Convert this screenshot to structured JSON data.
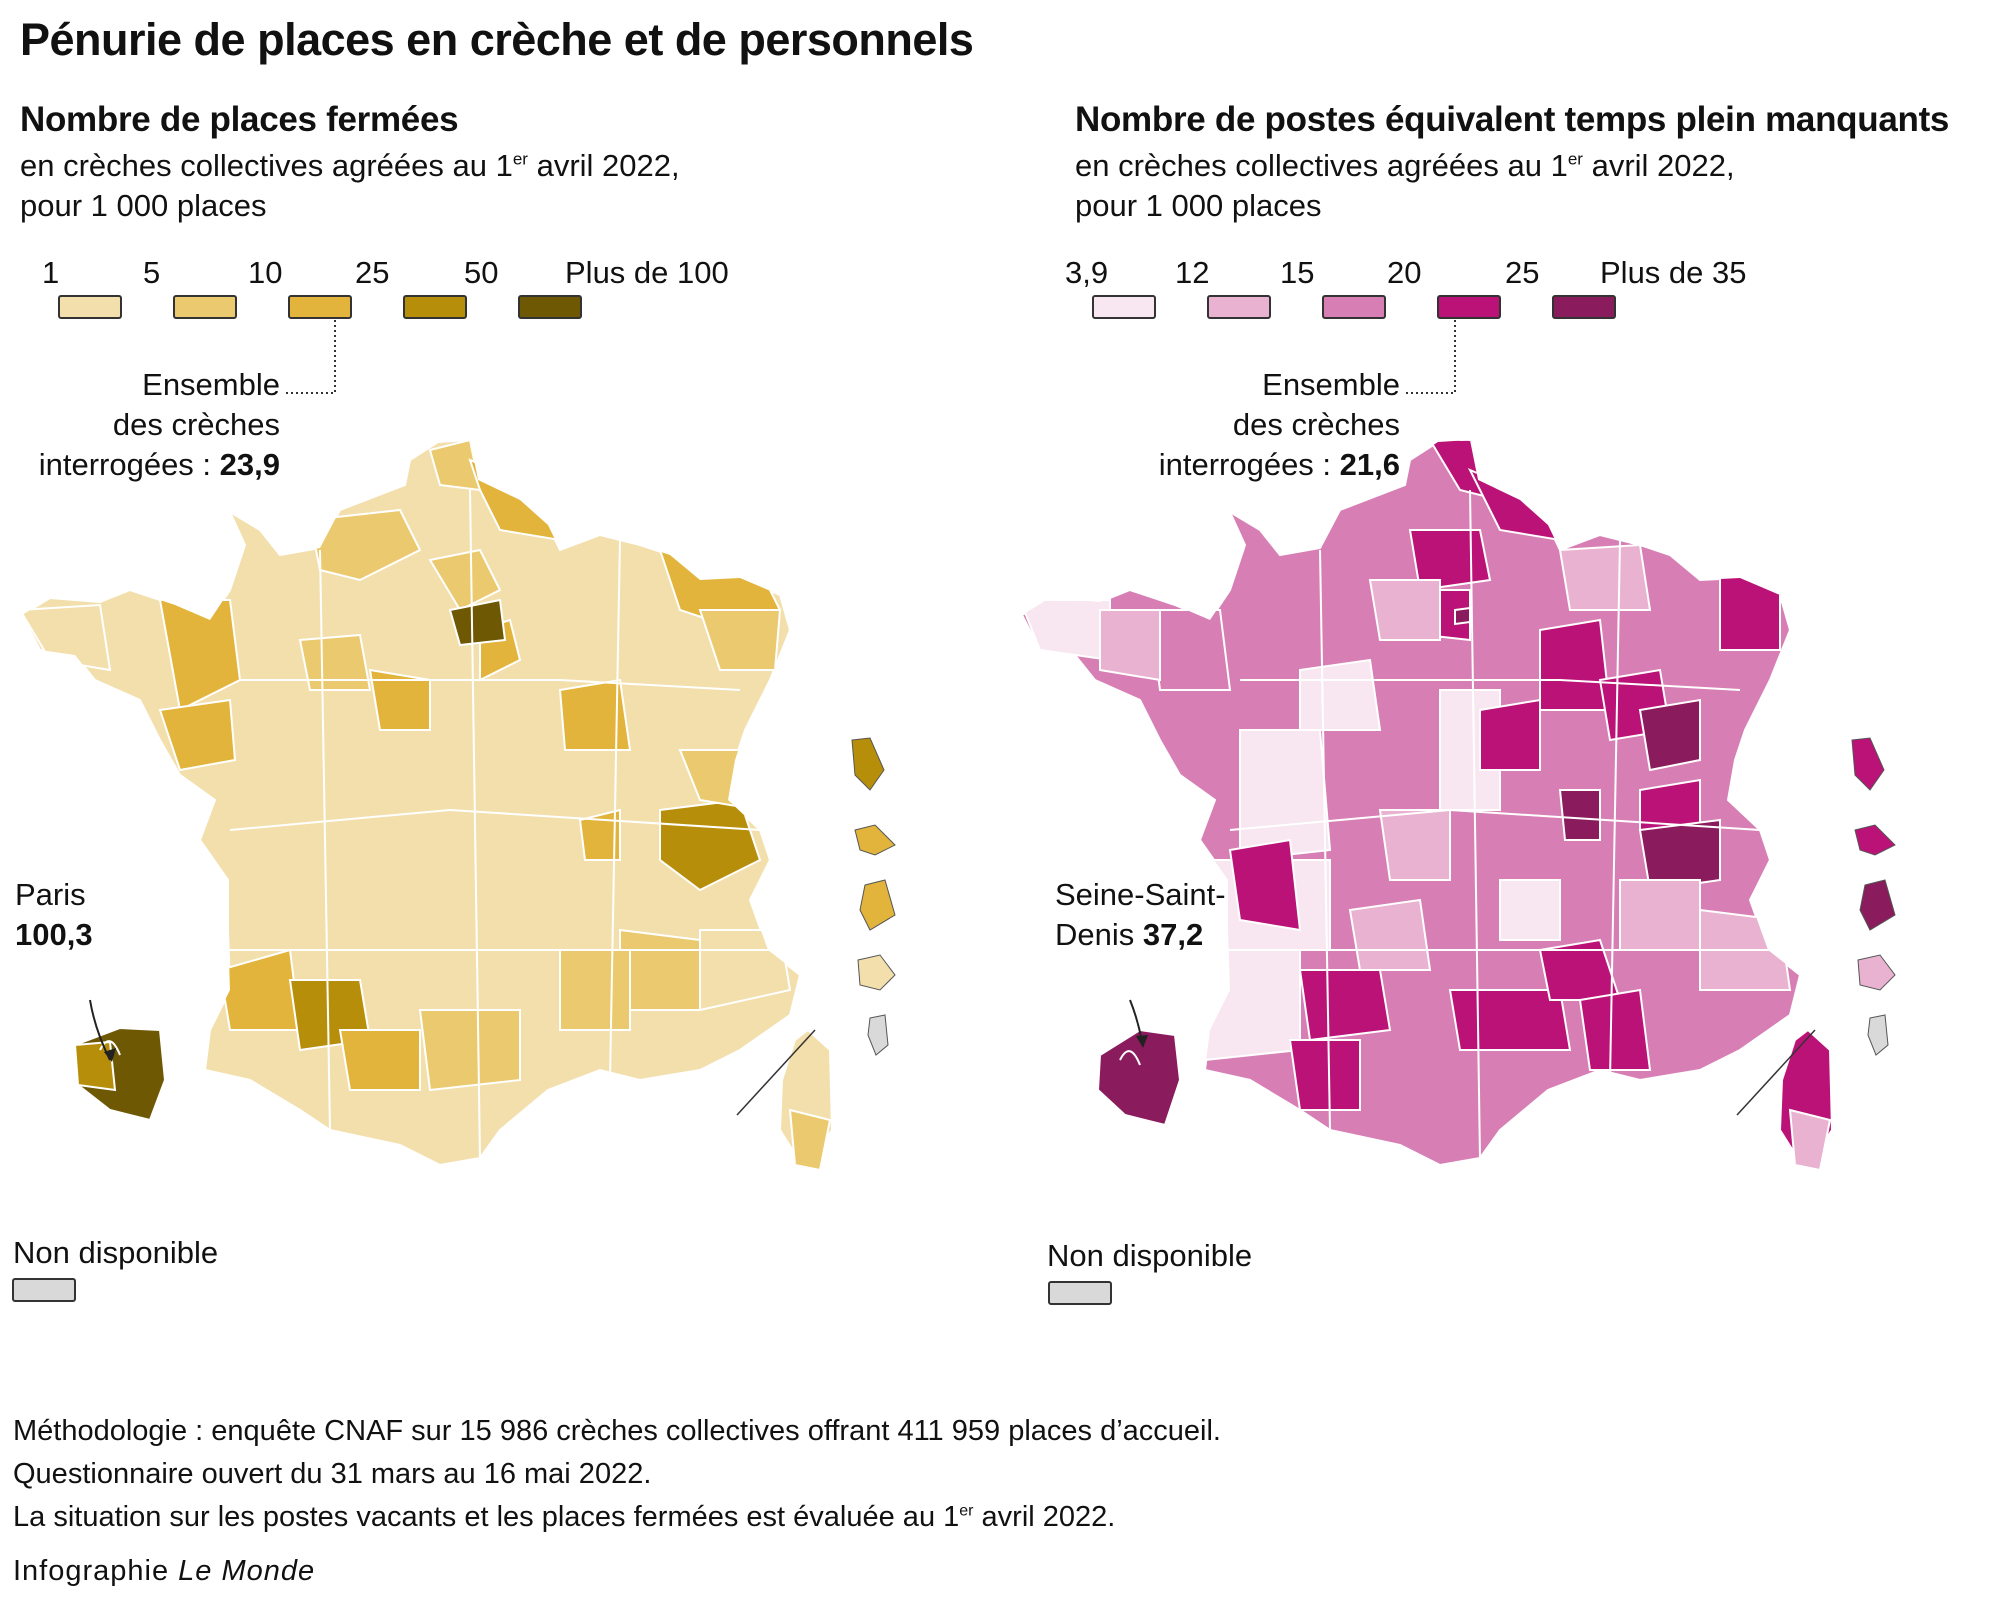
{
  "title": "Pénurie de places en crèche et de personnels",
  "left": {
    "heading": "Nombre de places fermées",
    "sub_line1_before": "en crèches collectives agréées au 1",
    "sub_line1_sup": "er",
    "sub_line1_after": " avril 2022,",
    "sub_line2": "pour 1 000 places",
    "legend_labels": [
      "1",
      "5",
      "10",
      "25",
      "50",
      "Plus de 100"
    ],
    "legend_colors": [
      "#f2dfac",
      "#ebc96e",
      "#e3b43c",
      "#b78e0a",
      "#6f5804"
    ],
    "overall_label_1": "Ensemble",
    "overall_label_2": "des crèches",
    "overall_label_3": "interrogées : ",
    "overall_value": "23,9",
    "callout_name": "Paris",
    "callout_value": "100,3",
    "na_label": "Non disponible",
    "na_color": "#d9d9d9"
  },
  "right": {
    "heading": "Nombre de postes équivalent temps plein manquants",
    "sub_line1_before": "en crèches  collectives agréées au 1",
    "sub_line1_sup": "er",
    "sub_line1_after": " avril 2022,",
    "sub_line2": "pour 1 000 places",
    "legend_labels": [
      "3,9",
      "12",
      "15",
      "20",
      "25",
      "Plus de 35"
    ],
    "legend_colors": [
      "#f8e7f0",
      "#e8b2d0",
      "#d77fb5",
      "#bb1278",
      "#8a1b5d"
    ],
    "overall_label_1": "Ensemble",
    "overall_label_2": "des crèches",
    "overall_label_3": "interrogées : ",
    "overall_value": "21,6",
    "callout_name_1": "Seine-Saint-",
    "callout_name_2": "Denis ",
    "callout_value": "37,2",
    "na_label": "Non disponible",
    "na_color": "#d9d9d9"
  },
  "footer": {
    "line1": "Méthodologie : enquête CNAF sur 15 986 crèches collectives offrant 411 959 places d’accueil.",
    "line2": "Questionnaire ouvert du 31 mars au 16 mai 2022.",
    "line3_before": "La situation sur les postes vacants et les places fermées est évaluée au 1",
    "line3_sup": "er",
    "line3_after": " avril 2022.",
    "credit_prefix": "Infographie ",
    "credit_brand": "Le Monde"
  }
}
